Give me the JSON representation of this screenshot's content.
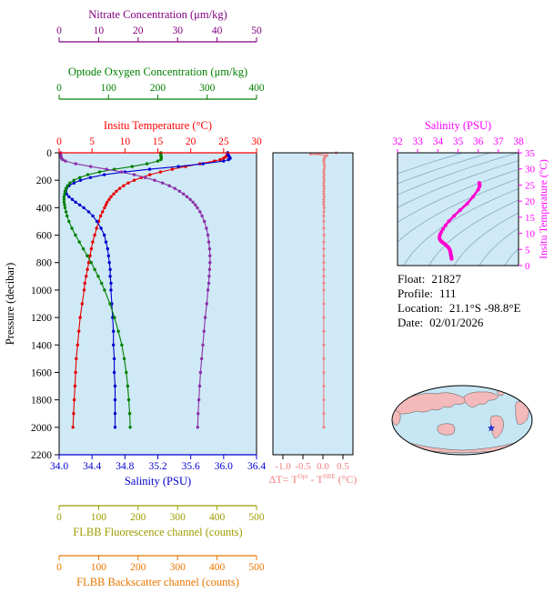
{
  "float_info": {
    "rows": [
      {
        "label": "Float:",
        "value": "21827"
      },
      {
        "label": "Profile:",
        "value": "111"
      },
      {
        "label": "Location:",
        "value": "21.1°S  -98.8°E"
      },
      {
        "label": "Date:",
        "value": "02/01/2026"
      }
    ]
  },
  "map": {
    "ocean_color": "#c6e6f4",
    "land_color": "#f4b9ba",
    "outline_color": "#000000",
    "star_color": "#2233cc",
    "star_fx": 0.705,
    "star_fy": 0.615
  },
  "chart_data": [
    {
      "type": "line",
      "title": "",
      "plot_bg": "#cfe9f6",
      "y_axis": {
        "label": "Pressure (decibar)",
        "min": 0,
        "max": 2200,
        "ticks": [
          0,
          200,
          400,
          600,
          800,
          1000,
          1200,
          1400,
          1600,
          1800,
          2000,
          2200
        ]
      },
      "x_axes": [
        {
          "id": "nitrate",
          "label": "Nitrate Concentration (μm/kg)",
          "min": 0,
          "max": 50,
          "ticks": [
            "0",
            "10",
            "20",
            "30",
            "40",
            "50"
          ],
          "color": "#800080"
        },
        {
          "id": "oxygen",
          "label": "Optode Oxygen Concentration (μm/kg)",
          "min": 0,
          "max": 400,
          "ticks": [
            "0",
            "100",
            "200",
            "300",
            "400"
          ],
          "color": "#008000"
        },
        {
          "id": "temperature",
          "label": "Insitu Temperature (°C)",
          "min": 0,
          "max": 30,
          "ticks": [
            "0",
            "5",
            "10",
            "15",
            "20",
            "25",
            "30"
          ],
          "color": "#ff0000"
        },
        {
          "id": "salinity",
          "label": "Salinity (PSU)",
          "min": 34.0,
          "max": 36.4,
          "ticks": [
            "34.0",
            "34.4",
            "34.8",
            "35.2",
            "35.6",
            "36.0",
            "36.4"
          ],
          "color": "#0000cd"
        },
        {
          "id": "fluorescence",
          "label": "FLBB Fluorescence channel (counts)",
          "min": 0,
          "max": 500,
          "ticks": [
            "0",
            "100",
            "200",
            "300",
            "400",
            "500"
          ],
          "color": "#9c9c00"
        },
        {
          "id": "backscatter",
          "label": "FLBB Backscatter channel (counts)",
          "min": 0,
          "max": 500,
          "ticks": [
            "0",
            "100",
            "200",
            "300",
            "400",
            "500"
          ],
          "color": "#e87600"
        }
      ],
      "pressure": [
        0,
        10,
        20,
        30,
        40,
        50,
        60,
        80,
        100,
        120,
        140,
        160,
        180,
        200,
        220,
        240,
        260,
        280,
        300,
        320,
        340,
        360,
        380,
        400,
        430,
        460,
        500,
        550,
        600,
        650,
        700,
        750,
        800,
        850,
        900,
        950,
        1000,
        1100,
        1200,
        1300,
        1400,
        1500,
        1600,
        1700,
        1800,
        1900,
        2000
      ],
      "series": [
        {
          "name": "Insitu Temperature (°C)",
          "axis": "temperature",
          "color": "#e60000",
          "values": [
            25.6,
            25.6,
            25.5,
            25.3,
            25.0,
            24.5,
            23.6,
            21.4,
            19.2,
            17.2,
            15.4,
            13.8,
            12.5,
            11.4,
            10.5,
            9.8,
            9.2,
            8.7,
            8.3,
            7.9,
            7.6,
            7.3,
            7.1,
            6.9,
            6.6,
            6.3,
            6.0,
            5.7,
            5.4,
            5.1,
            4.9,
            4.7,
            4.5,
            4.3,
            4.1,
            3.9,
            3.8,
            3.5,
            3.2,
            3.0,
            2.8,
            2.6,
            2.5,
            2.4,
            2.3,
            2.2,
            2.1
          ]
        },
        {
          "name": "Salinity (PSU)",
          "axis": "salinity",
          "color": "#0000cc",
          "values": [
            36.05,
            36.05,
            36.06,
            36.07,
            36.08,
            36.06,
            36.0,
            35.75,
            35.45,
            35.1,
            34.8,
            34.55,
            34.38,
            34.26,
            34.18,
            34.12,
            34.09,
            34.08,
            34.09,
            34.12,
            34.16,
            34.2,
            34.25,
            34.3,
            34.36,
            34.41,
            34.46,
            34.51,
            34.55,
            34.57,
            34.59,
            34.6,
            34.61,
            34.62,
            34.62,
            34.63,
            34.63,
            34.64,
            34.65,
            34.66,
            34.66,
            34.67,
            34.67,
            34.68,
            34.68,
            34.68,
            34.68
          ]
        },
        {
          "name": "Optode Oxygen Concentration (μm/kg)",
          "axis": "oxygen",
          "color": "#008000",
          "values": [
            206,
            206,
            206,
            207,
            207,
            206,
            200,
            178,
            148,
            112,
            82,
            58,
            42,
            30,
            22,
            17,
            14,
            12,
            11,
            10,
            10,
            10,
            11,
            12,
            14,
            16,
            20,
            26,
            33,
            41,
            49,
            57,
            65,
            72,
            79,
            86,
            92,
            103,
            112,
            120,
            127,
            132,
            136,
            139,
            141,
            143,
            144
          ]
        },
        {
          "name": "Nitrate Concentration (μm/kg)",
          "axis": "nitrate",
          "color": "#8b2fa8",
          "values": [
            0.4,
            0.4,
            0.4,
            0.5,
            0.6,
            0.9,
            1.6,
            4.2,
            8.0,
            12.0,
            15.8,
            19.0,
            21.8,
            24.2,
            26.2,
            27.9,
            29.3,
            30.5,
            31.5,
            32.4,
            33.2,
            33.9,
            34.5,
            35.0,
            35.7,
            36.2,
            36.8,
            37.3,
            37.7,
            37.9,
            38.1,
            38.2,
            38.2,
            38.1,
            38.0,
            37.9,
            37.7,
            37.4,
            37.0,
            36.7,
            36.4,
            36.1,
            35.8,
            35.6,
            35.4,
            35.2,
            35.1
          ]
        }
      ]
    },
    {
      "type": "line",
      "plot_bg": "#cfe9f6",
      "color": "#f08080",
      "title": {
        "prefix": "ΔT= T",
        "sup1": "Opt",
        "mid": " - T",
        "sup2": "SBE",
        "suffix": " (°C)"
      },
      "x_axis": {
        "min": -1.25,
        "max": 0.75,
        "ticks": [
          "-1.0",
          "-0.5",
          "0.0",
          "0.5"
        ],
        "color": "#f08080"
      },
      "y_axis": {
        "min": 0,
        "max": 2200
      },
      "pressure": [
        0,
        10,
        20,
        30,
        40,
        50,
        60,
        80,
        100,
        120,
        140,
        160,
        180,
        200,
        220,
        240,
        260,
        280,
        300,
        320,
        340,
        360,
        380,
        400,
        430,
        460,
        500,
        550,
        600,
        650,
        700,
        750,
        800,
        850,
        900,
        950,
        1000,
        1100,
        1200,
        1300,
        1400,
        1500,
        1600,
        1700,
        1800,
        1900,
        2000
      ],
      "values": [
        0.33,
        -0.31,
        0.1,
        0.05,
        0.03,
        0.03,
        0.02,
        0.03,
        0.04,
        0.03,
        0.02,
        0.03,
        0.02,
        0.03,
        0.02,
        0.02,
        0.03,
        0.02,
        0.02,
        0.03,
        0.02,
        0.02,
        0.02,
        0.03,
        0.02,
        0.02,
        0.02,
        0.02,
        0.03,
        0.02,
        0.02,
        0.02,
        0.02,
        0.02,
        0.02,
        0.02,
        0.02,
        0.02,
        0.02,
        0.02,
        0.02,
        0.02,
        0.02,
        0.02,
        0.02,
        0.02,
        0.02
      ]
    },
    {
      "type": "line",
      "plot_bg": "#cfe9f6",
      "x_axis": {
        "label": "Salinity (PSU)",
        "min": 32,
        "max": 38,
        "ticks": [
          "32",
          "33",
          "34",
          "35",
          "36",
          "37",
          "38"
        ],
        "color": "#ff00ff"
      },
      "y_axis": {
        "label": "Insitu Temperature (°C)",
        "min": 0,
        "max": 35,
        "ticks": [
          "0",
          "5",
          "10",
          "15",
          "20",
          "25",
          "30",
          "35"
        ],
        "color": "#ff00ff"
      },
      "curve": {
        "color": "#ff00d0",
        "salinity": [
          36.05,
          36.05,
          36.06,
          36.07,
          36.08,
          36.06,
          36.0,
          35.75,
          35.45,
          35.1,
          34.8,
          34.55,
          34.38,
          34.26,
          34.18,
          34.12,
          34.09,
          34.08,
          34.09,
          34.12,
          34.16,
          34.2,
          34.25,
          34.3,
          34.36,
          34.41,
          34.46,
          34.51,
          34.55,
          34.57,
          34.59,
          34.6,
          34.61,
          34.62,
          34.62,
          34.63,
          34.63,
          34.64,
          34.65,
          34.66,
          34.66,
          34.67,
          34.67,
          34.68,
          34.68,
          34.68,
          34.68
        ],
        "temperature": [
          25.6,
          25.6,
          25.5,
          25.3,
          25.0,
          24.5,
          23.6,
          21.4,
          19.2,
          17.2,
          15.4,
          13.8,
          12.5,
          11.4,
          10.5,
          9.8,
          9.2,
          8.7,
          8.3,
          7.9,
          7.6,
          7.3,
          7.1,
          6.9,
          6.6,
          6.3,
          6.0,
          5.7,
          5.4,
          5.1,
          4.9,
          4.7,
          4.5,
          4.3,
          4.1,
          3.9,
          3.8,
          3.5,
          3.2,
          3.0,
          2.8,
          2.6,
          2.5,
          2.4,
          2.3,
          2.2,
          2.1
        ]
      },
      "contours": {
        "levels": [
          20,
          21,
          22,
          23,
          24,
          25,
          26,
          27,
          28,
          29,
          30
        ],
        "color": "#4a8099"
      }
    }
  ]
}
